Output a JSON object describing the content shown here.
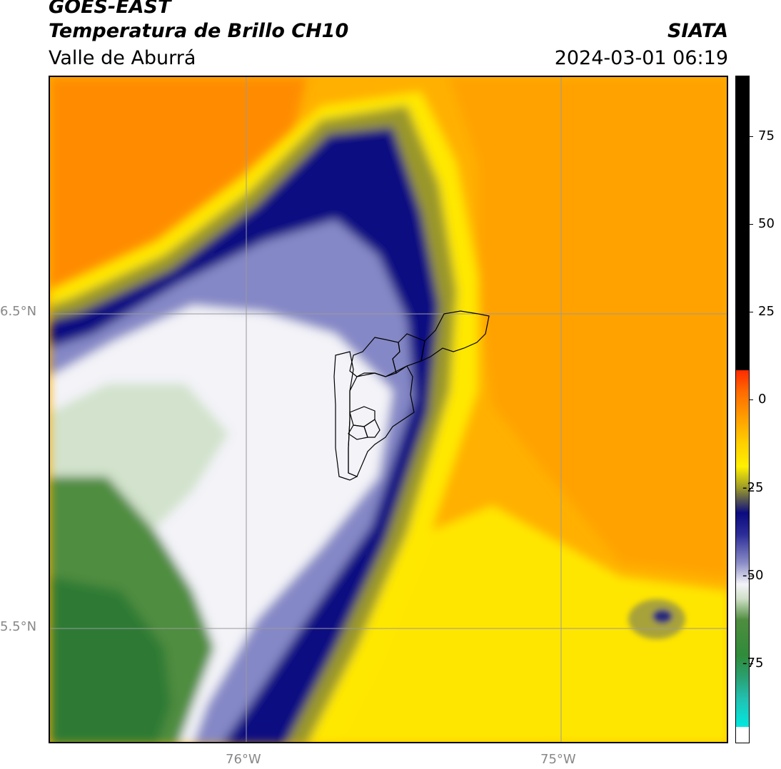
{
  "header": {
    "satellite": "GOES-EAST",
    "product": "Temperatura de Brillo CH10",
    "organization": "SIATA",
    "region": "Valle de Aburrá",
    "datetime": "2024-03-01 06:19"
  },
  "axes": {
    "lat_labels": [
      "6.5°N",
      "5.5°N"
    ],
    "lon_labels": [
      "76°W",
      "75°W"
    ]
  },
  "colorbar": {
    "tick_labels": [
      "75",
      "50",
      "25",
      "0",
      "-25",
      "-50",
      "-75"
    ]
  },
  "colors": {
    "orange": "#ff8c00",
    "yellow": "#ffea00",
    "olive": "#a8a32c",
    "navy": "#0a0a80",
    "blue_gray": "#8a8cc8",
    "white": "#f4f4f8",
    "light_green": "#cfe0c8",
    "green": "#4e8c3e"
  }
}
